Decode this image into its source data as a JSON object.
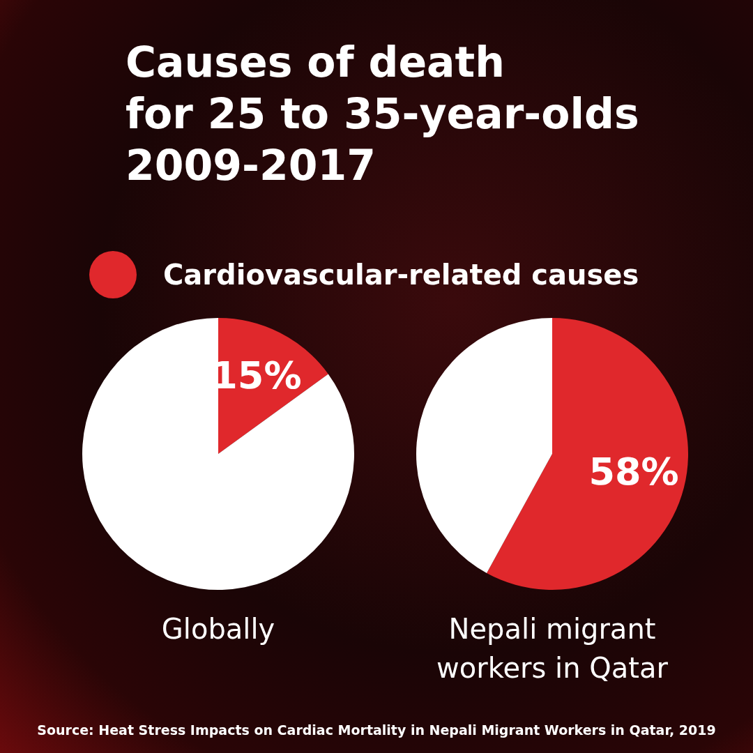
{
  "chart_data": [
    {
      "type": "pie",
      "title": "Causes of death\nfor 25 to 35-year-olds\n2009-2017",
      "categories": [
        "Cardiovascular-related causes",
        null
      ],
      "values": [
        15,
        85
      ],
      "colors": [
        "#e0282c",
        "#ffffff"
      ],
      "value_labels": [
        "15%",
        null
      ],
      "legend": "top",
      "xlabel": "Globally"
    },
    {
      "type": "pie",
      "categories": [
        null,
        null
      ],
      "values": [
        58,
        42
      ],
      "colors": [
        "#e0282c",
        "#ffffff"
      ],
      "value_labels": [
        "58%",
        null
      ],
      "xlabel": "Nepali migrant workers in Qatar",
      "annotations": [
        "Source: Heat Stress Impacts on Cardiac Mortality in Nepali Migrant Workers in Qatar, 2019"
      ]
    }
  ]
}
